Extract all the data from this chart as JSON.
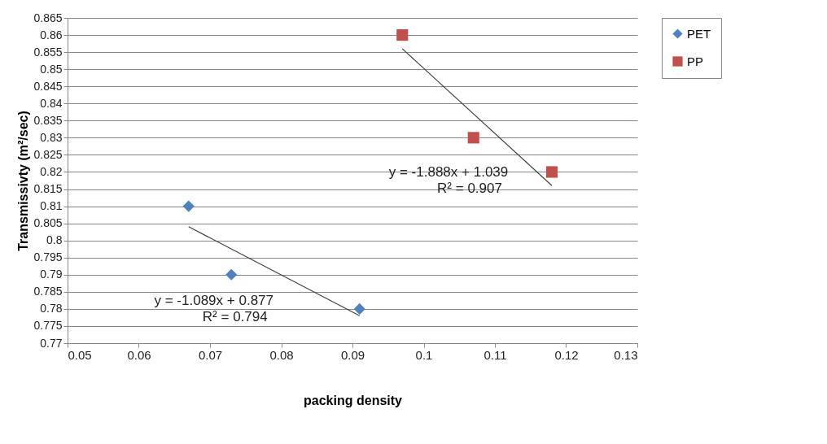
{
  "chart_data": {
    "type": "scatter",
    "xlabel": "packing density",
    "ylabel": "Transmissivty (m²/sec)",
    "xlim": [
      0.05,
      0.13
    ],
    "xticks": [
      0.05,
      0.06,
      0.07,
      0.08,
      0.09,
      0.1,
      0.11,
      0.12,
      0.13
    ],
    "ylim": [
      0.77,
      0.865
    ],
    "yticks": [
      0.77,
      0.775,
      0.78,
      0.785,
      0.79,
      0.795,
      0.8,
      0.805,
      0.81,
      0.815,
      0.82,
      0.825,
      0.83,
      0.835,
      0.84,
      0.845,
      0.85,
      0.855,
      0.86,
      0.865
    ],
    "grid": "y",
    "legend": "right",
    "series": [
      {
        "name": "PET",
        "color": "#4f81bd",
        "marker": "diamond",
        "x": [
          0.067,
          0.073,
          0.091
        ],
        "values": [
          0.81,
          0.79,
          0.78
        ]
      },
      {
        "name": "PP",
        "color": "#c0504d",
        "marker": "square",
        "x": [
          0.097,
          0.107,
          0.118
        ],
        "values": [
          0.86,
          0.83,
          0.82
        ]
      },
      {
        "type": "line",
        "color": "#404040",
        "x": [
          0.067,
          0.091
        ],
        "values": [
          0.804,
          0.778
        ]
      },
      {
        "type": "line",
        "color": "#404040",
        "x": [
          0.097,
          0.118
        ],
        "values": [
          0.856,
          0.816
        ]
      }
    ],
    "annotations": [
      "y = -1.089x + 0.877",
      "R² = 0.794",
      "y = -1.888x + 1.039",
      "R² = 0.907"
    ]
  }
}
